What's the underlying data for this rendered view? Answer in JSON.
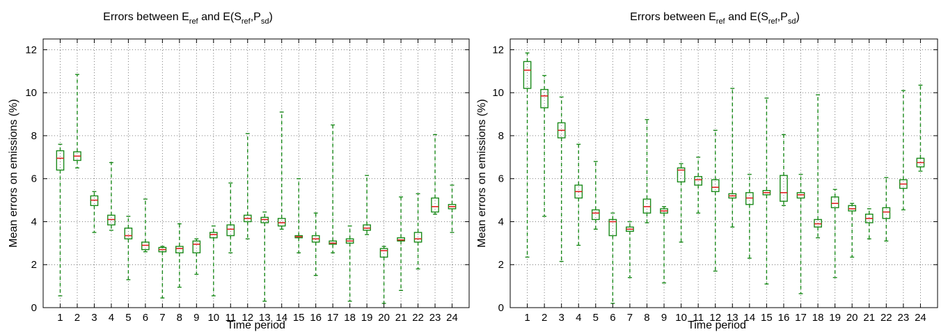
{
  "chart_data": [
    {
      "type": "box",
      "title": {
        "prefix": "Errors between E",
        "sub1": "ref",
        "middle": " and E(S",
        "sub2": "ref",
        "sep": ",P",
        "sub3": "sd",
        "suffix": ")"
      },
      "xlabel": "Time period",
      "ylabel": "Mean errors on emissions (%)",
      "ylim": [
        0,
        12.5
      ],
      "yticks": [
        0,
        2,
        4,
        6,
        8,
        10,
        12
      ],
      "grid": true,
      "categories": [
        "1",
        "2",
        "3",
        "4",
        "5",
        "6",
        "7",
        "8",
        "9",
        "10",
        "11",
        "12",
        "13",
        "14",
        "15",
        "16",
        "17",
        "18",
        "19",
        "20",
        "21",
        "22",
        "23",
        "24"
      ],
      "boxes": [
        {
          "min": 0.55,
          "q1": 6.4,
          "median": 6.95,
          "q3": 7.3,
          "max": 7.6
        },
        {
          "min": 6.5,
          "q1": 6.85,
          "median": 7.05,
          "q3": 7.25,
          "max": 10.85
        },
        {
          "min": 3.5,
          "q1": 4.75,
          "median": 5.0,
          "q3": 5.2,
          "max": 5.4
        },
        {
          "min": 3.6,
          "q1": 3.85,
          "median": 4.1,
          "q3": 4.3,
          "max": 6.75
        },
        {
          "min": 1.3,
          "q1": 3.2,
          "median": 3.35,
          "q3": 3.7,
          "max": 4.25
        },
        {
          "min": 2.6,
          "q1": 2.7,
          "median": 2.9,
          "q3": 3.05,
          "max": 5.05
        },
        {
          "min": 0.45,
          "q1": 2.6,
          "median": 2.7,
          "q3": 2.8,
          "max": 2.85
        },
        {
          "min": 0.95,
          "q1": 2.55,
          "median": 2.75,
          "q3": 2.85,
          "max": 3.9
        },
        {
          "min": 1.55,
          "q1": 2.55,
          "median": 2.95,
          "q3": 3.1,
          "max": 3.2
        },
        {
          "min": 0.55,
          "q1": 3.25,
          "median": 3.4,
          "q3": 3.5,
          "max": 3.8
        },
        {
          "min": 2.55,
          "q1": 3.35,
          "median": 3.65,
          "q3": 3.85,
          "max": 5.8
        },
        {
          "min": 3.2,
          "q1": 4.0,
          "median": 4.15,
          "q3": 4.3,
          "max": 8.1
        },
        {
          "min": 0.3,
          "q1": 3.95,
          "median": 4.1,
          "q3": 4.2,
          "max": 4.45
        },
        {
          "min": 3.65,
          "q1": 3.8,
          "median": 3.95,
          "q3": 4.15,
          "max": 9.1
        },
        {
          "min": 2.55,
          "q1": 3.25,
          "median": 3.3,
          "q3": 3.35,
          "max": 6.0
        },
        {
          "min": 1.5,
          "q1": 3.05,
          "median": 3.2,
          "q3": 3.35,
          "max": 4.4
        },
        {
          "min": 2.55,
          "q1": 2.95,
          "median": 3.0,
          "q3": 3.1,
          "max": 8.5
        },
        {
          "min": 0.3,
          "q1": 3.0,
          "median": 3.1,
          "q3": 3.2,
          "max": 3.8
        },
        {
          "min": 3.4,
          "q1": 3.6,
          "median": 3.7,
          "q3": 3.85,
          "max": 6.15
        },
        {
          "min": 0.2,
          "q1": 2.35,
          "median": 2.65,
          "q3": 2.75,
          "max": 2.85
        },
        {
          "min": 0.8,
          "q1": 3.1,
          "median": 3.15,
          "q3": 3.25,
          "max": 5.15
        },
        {
          "min": 1.8,
          "q1": 3.05,
          "median": 3.2,
          "q3": 3.5,
          "max": 5.3
        },
        {
          "min": 4.35,
          "q1": 4.45,
          "median": 4.7,
          "q3": 5.1,
          "max": 8.05
        },
        {
          "min": 3.5,
          "q1": 4.6,
          "median": 4.7,
          "q3": 4.8,
          "max": 5.7
        }
      ]
    },
    {
      "type": "box",
      "title": {
        "prefix": "Errors between E",
        "sub1": "ref",
        "middle": " and E(S",
        "sub2": "ref",
        "sep": ",P",
        "sub3": "sd",
        "suffix": ")"
      },
      "xlabel": "Time period",
      "ylabel": "Mean errors on emissions (%)",
      "ylim": [
        0,
        12.5
      ],
      "yticks": [
        0,
        2,
        4,
        6,
        8,
        10,
        12
      ],
      "grid": true,
      "categories": [
        "1",
        "2",
        "3",
        "4",
        "5",
        "6",
        "7",
        "8",
        "9",
        "10",
        "11",
        "12",
        "13",
        "14",
        "15",
        "16",
        "17",
        "18",
        "19",
        "20",
        "21",
        "22",
        "23",
        "24"
      ],
      "boxes": [
        {
          "min": 2.35,
          "q1": 10.2,
          "median": 11.05,
          "q3": 11.45,
          "max": 11.85
        },
        {
          "min": 4.25,
          "q1": 9.3,
          "median": 9.85,
          "q3": 10.15,
          "max": 10.8
        },
        {
          "min": 2.15,
          "q1": 7.9,
          "median": 8.25,
          "q3": 8.6,
          "max": 9.8
        },
        {
          "min": 2.9,
          "q1": 5.1,
          "median": 5.4,
          "q3": 5.7,
          "max": 7.6
        },
        {
          "min": 3.65,
          "q1": 4.1,
          "median": 4.4,
          "q3": 4.55,
          "max": 6.8
        },
        {
          "min": 0.2,
          "q1": 3.35,
          "median": 4.0,
          "q3": 4.1,
          "max": 4.4
        },
        {
          "min": 1.4,
          "q1": 3.55,
          "median": 3.65,
          "q3": 3.75,
          "max": 4.0
        },
        {
          "min": 3.95,
          "q1": 4.4,
          "median": 4.7,
          "q3": 5.05,
          "max": 8.75
        },
        {
          "min": 1.15,
          "q1": 4.4,
          "median": 4.5,
          "q3": 4.6,
          "max": 4.7
        },
        {
          "min": 3.05,
          "q1": 5.85,
          "median": 6.4,
          "q3": 6.5,
          "max": 6.7
        },
        {
          "min": 4.4,
          "q1": 5.7,
          "median": 5.95,
          "q3": 6.1,
          "max": 7.0
        },
        {
          "min": 1.7,
          "q1": 5.4,
          "median": 5.6,
          "q3": 5.95,
          "max": 8.25
        },
        {
          "min": 3.75,
          "q1": 5.1,
          "median": 5.2,
          "q3": 5.3,
          "max": 10.2
        },
        {
          "min": 2.3,
          "q1": 4.8,
          "median": 5.1,
          "q3": 5.35,
          "max": 6.2
        },
        {
          "min": 1.1,
          "q1": 5.25,
          "median": 5.35,
          "q3": 5.45,
          "max": 9.75
        },
        {
          "min": 4.75,
          "q1": 4.95,
          "median": 5.35,
          "q3": 6.15,
          "max": 8.05
        },
        {
          "min": 0.65,
          "q1": 5.1,
          "median": 5.25,
          "q3": 5.35,
          "max": 6.2
        },
        {
          "min": 3.25,
          "q1": 3.75,
          "median": 3.9,
          "q3": 4.1,
          "max": 9.9
        },
        {
          "min": 1.4,
          "q1": 4.65,
          "median": 4.85,
          "q3": 5.15,
          "max": 5.5
        },
        {
          "min": 2.35,
          "q1": 4.5,
          "median": 4.6,
          "q3": 4.75,
          "max": 4.85
        },
        {
          "min": 3.2,
          "q1": 3.95,
          "median": 4.15,
          "q3": 4.35,
          "max": 4.6
        },
        {
          "min": 3.1,
          "q1": 4.15,
          "median": 4.45,
          "q3": 4.65,
          "max": 6.05
        },
        {
          "min": 4.55,
          "q1": 5.55,
          "median": 5.75,
          "q3": 5.95,
          "max": 10.1
        },
        {
          "min": 6.35,
          "q1": 6.55,
          "median": 6.75,
          "q3": 6.95,
          "max": 10.35
        }
      ]
    }
  ]
}
